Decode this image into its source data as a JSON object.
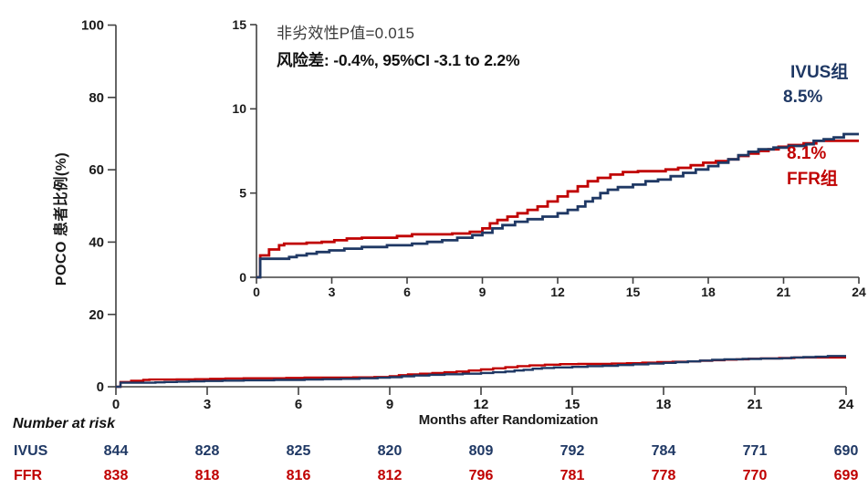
{
  "colors": {
    "ivus": "#1F3864",
    "ffr": "#C00000",
    "axis": "#404040",
    "text": "#1A1A1A"
  },
  "annotations": {
    "noninferiority": "非劣效性P值=0.015",
    "risk_diff": "风险差: -0.4%, 95%CI -3.1 to 2.2%",
    "ivus_group_label": "IVUS组",
    "ivus_rate": "8.5%",
    "ffr_rate": "8.1%",
    "ffr_group_label": "FFR组"
  },
  "axes": {
    "y_label": "POCO 患者比例(%)",
    "x_label": "Months after Randomization",
    "main_y_ticks": [
      0,
      20,
      40,
      60,
      80,
      100
    ],
    "inset_y_ticks": [
      0,
      5,
      10,
      15
    ],
    "x_ticks": [
      0,
      3,
      6,
      9,
      12,
      15,
      18,
      21,
      24
    ]
  },
  "number_at_risk": {
    "title": "Number at risk",
    "rows": [
      {
        "label": "IVUS",
        "color": "#1F3864",
        "values": [
          844,
          828,
          825,
          820,
          809,
          792,
          784,
          771,
          690
        ]
      },
      {
        "label": "FFR",
        "color": "#C00000",
        "values": [
          838,
          818,
          816,
          812,
          796,
          781,
          778,
          770,
          699
        ]
      }
    ]
  },
  "chart_data": {
    "type": "line",
    "subtype": "kaplan-meier-step",
    "title": "",
    "xlabel": "Months after Randomization",
    "ylabel": "POCO 患者比例(%)",
    "xlim": [
      0,
      24
    ],
    "main_ylim": [
      0,
      100
    ],
    "inset_ylim": [
      0,
      15
    ],
    "grid": false,
    "annotations": [
      "非劣效性P值=0.015",
      "风险差: -0.4%, 95%CI -3.1 to 2.2%"
    ],
    "series": [
      {
        "id": "ffr",
        "name": "FFR组",
        "color": "#C00000",
        "final_value_pct": 8.1,
        "points": [
          [
            0,
            0
          ],
          [
            0.15,
            1.3
          ],
          [
            0.5,
            1.65
          ],
          [
            0.9,
            1.9
          ],
          [
            1.1,
            2.0
          ],
          [
            2.0,
            2.05
          ],
          [
            2.6,
            2.1
          ],
          [
            3.1,
            2.2
          ],
          [
            3.6,
            2.3
          ],
          [
            4.2,
            2.35
          ],
          [
            5.6,
            2.45
          ],
          [
            6.2,
            2.55
          ],
          [
            7.8,
            2.6
          ],
          [
            8.5,
            2.7
          ],
          [
            9.0,
            2.9
          ],
          [
            9.3,
            3.2
          ],
          [
            9.6,
            3.4
          ],
          [
            10.0,
            3.6
          ],
          [
            10.4,
            3.8
          ],
          [
            10.8,
            4.0
          ],
          [
            11.2,
            4.2
          ],
          [
            11.6,
            4.5
          ],
          [
            12.0,
            4.8
          ],
          [
            12.4,
            5.1
          ],
          [
            12.8,
            5.4
          ],
          [
            13.2,
            5.7
          ],
          [
            13.6,
            5.9
          ],
          [
            14.1,
            6.1
          ],
          [
            14.6,
            6.25
          ],
          [
            15.2,
            6.3
          ],
          [
            16.3,
            6.4
          ],
          [
            16.8,
            6.5
          ],
          [
            17.3,
            6.65
          ],
          [
            17.8,
            6.8
          ],
          [
            18.3,
            6.9
          ],
          [
            18.8,
            7.0
          ],
          [
            19.2,
            7.2
          ],
          [
            19.6,
            7.35
          ],
          [
            20.0,
            7.5
          ],
          [
            20.4,
            7.6
          ],
          [
            20.8,
            7.75
          ],
          [
            21.2,
            7.85
          ],
          [
            21.8,
            7.95
          ],
          [
            22.3,
            8.1
          ],
          [
            24,
            8.1
          ]
        ]
      },
      {
        "id": "ivus",
        "name": "IVUS组",
        "color": "#1F3864",
        "final_value_pct": 8.5,
        "points": [
          [
            0,
            0
          ],
          [
            0.15,
            1.1
          ],
          [
            1.3,
            1.2
          ],
          [
            1.6,
            1.3
          ],
          [
            2.0,
            1.4
          ],
          [
            2.4,
            1.5
          ],
          [
            2.9,
            1.6
          ],
          [
            3.5,
            1.7
          ],
          [
            4.2,
            1.8
          ],
          [
            5.2,
            1.9
          ],
          [
            6.2,
            2.0
          ],
          [
            6.8,
            2.1
          ],
          [
            7.4,
            2.2
          ],
          [
            8.0,
            2.35
          ],
          [
            8.6,
            2.5
          ],
          [
            9.0,
            2.65
          ],
          [
            9.4,
            2.9
          ],
          [
            9.8,
            3.1
          ],
          [
            10.3,
            3.3
          ],
          [
            10.8,
            3.45
          ],
          [
            11.4,
            3.6
          ],
          [
            12.0,
            3.8
          ],
          [
            12.4,
            4.0
          ],
          [
            12.8,
            4.2
          ],
          [
            13.1,
            4.5
          ],
          [
            13.4,
            4.7
          ],
          [
            13.7,
            5.0
          ],
          [
            14.0,
            5.2
          ],
          [
            14.4,
            5.35
          ],
          [
            15.0,
            5.5
          ],
          [
            15.5,
            5.7
          ],
          [
            16.0,
            5.8
          ],
          [
            16.5,
            6.0
          ],
          [
            17.0,
            6.2
          ],
          [
            17.5,
            6.4
          ],
          [
            18.0,
            6.6
          ],
          [
            18.4,
            6.8
          ],
          [
            18.8,
            7.0
          ],
          [
            19.2,
            7.25
          ],
          [
            19.6,
            7.45
          ],
          [
            20.0,
            7.6
          ],
          [
            20.6,
            7.7
          ],
          [
            21.2,
            7.8
          ],
          [
            21.9,
            7.9
          ],
          [
            22.2,
            8.1
          ],
          [
            22.6,
            8.2
          ],
          [
            23.0,
            8.3
          ],
          [
            23.4,
            8.5
          ],
          [
            24,
            8.5
          ]
        ]
      }
    ]
  }
}
